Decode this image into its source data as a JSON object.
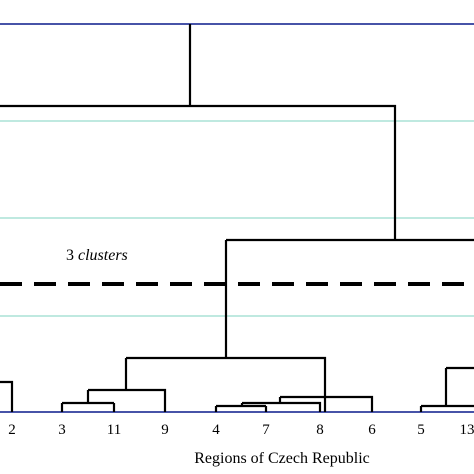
{
  "chart_data": {
    "type": "dendrogram",
    "xlabel": "Regions of Czech Republic",
    "annotation": {
      "prefix": "3 ",
      "text": "clusters"
    },
    "leaf_labels": [
      "2",
      "3",
      "11",
      "9",
      "4",
      "7",
      "8",
      "6",
      "5",
      "13"
    ],
    "grid": true,
    "colors": {
      "frame": "#0a1a8c",
      "grid": "#7fd3c2",
      "tree": "#000000",
      "cut_line": "#000000"
    }
  }
}
